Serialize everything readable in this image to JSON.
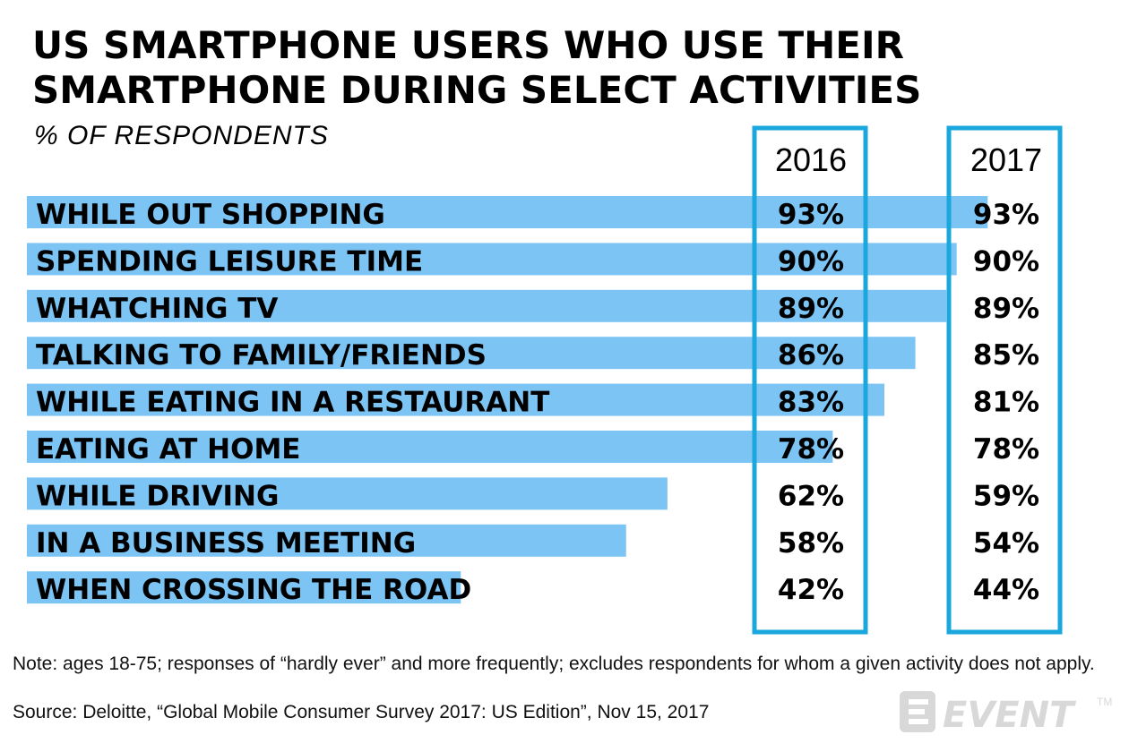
{
  "chart_data": {
    "type": "bar",
    "title": "US SMARTPHONE USERS WHO USE THEIR SMARTPHONE DURING SELECT ACTIVITIES",
    "subtitle": "% OF RESPONDENTS",
    "orientation": "horizontal",
    "categories": [
      "WHILE OUT SHOPPING",
      "SPENDING LEISURE TIME",
      "WHATCHING TV",
      "TALKING TO FAMILY/FRIENDS",
      "WHILE EATING IN A RESTAURANT",
      "EATING AT HOME",
      "WHILE DRIVING",
      "IN A BUSINESS MEETING",
      "WHEN CROSSING THE ROAD"
    ],
    "series": [
      {
        "name": "2016",
        "values": [
          93,
          90,
          89,
          86,
          83,
          78,
          62,
          58,
          42
        ],
        "labels": [
          "93%",
          "90%",
          "89%",
          "86%",
          "83%",
          "78%",
          "62%",
          "58%",
          "42%"
        ]
      },
      {
        "name": "2017",
        "values": [
          93,
          90,
          89,
          85,
          81,
          78,
          59,
          54,
          44
        ],
        "labels": [
          "93%",
          "90%",
          "89%",
          "85%",
          "81%",
          "78%",
          "59%",
          "54%",
          "44%"
        ]
      }
    ],
    "bar_series": "2016",
    "unit": "%",
    "xlim": [
      0,
      100
    ],
    "grid": false,
    "legend": "column headers at top"
  },
  "colors": {
    "bar": "#7cc4f4",
    "frame": "#1aa7dd"
  },
  "footer": {
    "note": "Note: ages 18-75; responses of “hardly ever” and more frequently; excludes respondents for whom a given activity does not apply.",
    "source": "Source: Deloitte, “Global Mobile Consumer Survey 2017: US Edition”, Nov 15, 2017"
  },
  "logo": {
    "text": "EVENT",
    "tm": "TM",
    "icon": "e-logo-icon"
  }
}
